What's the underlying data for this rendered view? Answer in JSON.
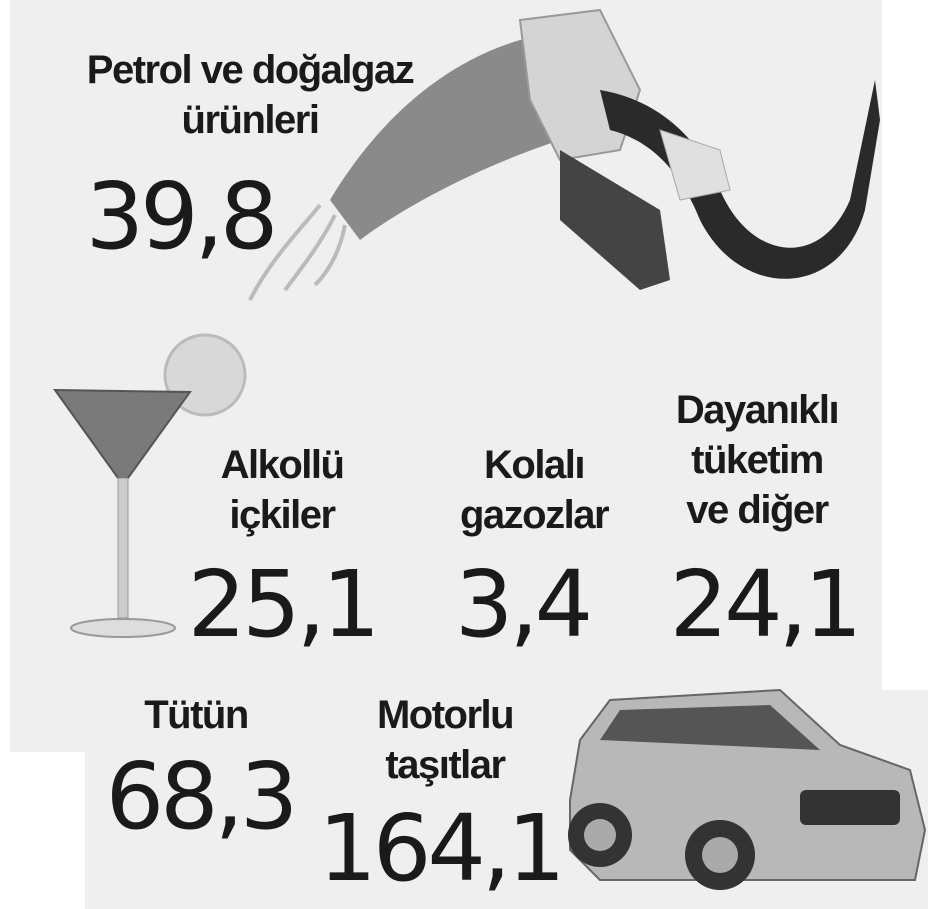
{
  "items": [
    {
      "label": [
        "Petrol ve doğalgaz",
        "ürünleri"
      ],
      "value": "39,8"
    },
    {
      "label": [
        "Alkollü",
        "içkiler"
      ],
      "value": "25,1"
    },
    {
      "label": [
        "Kolalı",
        "gazozlar"
      ],
      "value": "3,4"
    },
    {
      "label": [
        "Dayanıklı",
        "tüketim",
        "ve diğer"
      ],
      "value": "24,1"
    },
    {
      "label": [
        "Tütün"
      ],
      "value": "68,3"
    },
    {
      "label": [
        "Motorlu",
        "taşıtlar"
      ],
      "value": "164,1"
    }
  ]
}
